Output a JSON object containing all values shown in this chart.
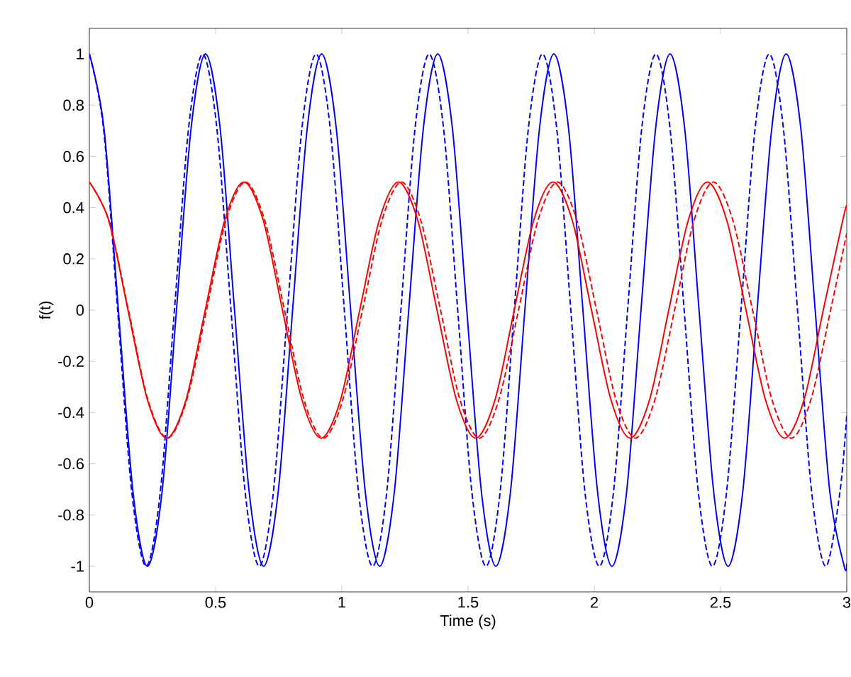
{
  "chart_data": {
    "type": "line",
    "xlabel": "Time (s)",
    "ylabel": "f(t)",
    "xlim": [
      0,
      3
    ],
    "ylim": [
      -1.1,
      1.1
    ],
    "xticks": [
      0,
      0.5,
      1,
      1.5,
      2,
      2.5,
      3
    ],
    "yticks": [
      -1,
      -0.8,
      -0.6,
      -0.4,
      -0.2,
      0,
      0.2,
      0.4,
      0.6,
      0.8,
      1
    ],
    "grid": false,
    "marker": "none",
    "series": [
      {
        "color": "#0000ff",
        "line_style": "solid",
        "x": [
          0,
          0.058,
          0.115,
          0.173,
          0.23,
          0.288,
          0.345,
          0.403,
          0.46,
          0.518,
          0.575,
          0.633,
          0.69,
          0.748,
          0.805,
          0.863,
          0.92,
          0.978,
          1.035,
          1.093,
          1.15,
          1.208,
          1.265,
          1.323,
          1.38,
          1.438,
          1.495,
          1.553,
          1.61,
          1.668,
          1.725,
          1.783,
          1.84,
          1.898,
          1.955,
          2.013,
          2.07,
          2.128,
          2.185,
          2.243,
          2.3,
          2.358,
          2.415,
          2.473,
          2.53,
          2.588,
          2.645,
          2.703,
          2.76,
          2.818,
          2.875,
          2.933,
          2.99,
          3
        ],
        "values": [
          1,
          0.71,
          0,
          -0.71,
          -1,
          -0.71,
          0,
          0.71,
          1,
          0.71,
          0,
          -0.71,
          -1,
          -0.71,
          0,
          0.71,
          1,
          0.71,
          0,
          -0.71,
          -1,
          -0.71,
          0,
          0.71,
          1,
          0.71,
          0,
          -0.71,
          -1,
          -0.71,
          0,
          0.71,
          1,
          0.71,
          0,
          -0.71,
          -1,
          -0.71,
          0,
          0.71,
          1,
          0.71,
          0,
          -0.71,
          -1,
          -0.71,
          0,
          0.71,
          1,
          0.71,
          0,
          -0.71,
          -1,
          -0.99
        ]
      },
      {
        "color": "#0000ff",
        "line_style": "dashed",
        "x": [
          0,
          0.056,
          0.112,
          0.168,
          0.225,
          0.281,
          0.337,
          0.393,
          0.449,
          0.505,
          0.561,
          0.617,
          0.673,
          0.729,
          0.785,
          0.842,
          0.898,
          0.954,
          1.01,
          1.066,
          1.122,
          1.178,
          1.234,
          1.29,
          1.346,
          1.403,
          1.459,
          1.515,
          1.571,
          1.627,
          1.683,
          1.739,
          1.795,
          1.851,
          1.907,
          1.963,
          2.02,
          2.076,
          2.132,
          2.188,
          2.244,
          2.3,
          2.356,
          2.412,
          2.468,
          2.524,
          2.581,
          2.637,
          2.693,
          2.749,
          2.805,
          2.861,
          2.917,
          2.973,
          3
        ],
        "values": [
          1,
          0.71,
          0,
          -0.71,
          -1,
          -0.71,
          0,
          0.71,
          1,
          0.71,
          0,
          -0.71,
          -1,
          -0.71,
          0,
          0.71,
          1,
          0.71,
          0,
          -0.71,
          -1,
          -0.71,
          0,
          0.71,
          1,
          0.71,
          0,
          -0.71,
          -1,
          -0.71,
          0,
          0.71,
          1,
          0.71,
          0,
          -0.71,
          -1,
          -0.71,
          0,
          0.71,
          1,
          0.71,
          0,
          -0.71,
          -1,
          -0.71,
          0,
          0.71,
          1,
          0.71,
          0,
          -0.71,
          -1,
          -0.71,
          -0.41
        ]
      },
      {
        "color": "#ff0000",
        "line_style": "solid",
        "x": [
          0,
          0.077,
          0.153,
          0.23,
          0.306,
          0.383,
          0.459,
          0.536,
          0.612,
          0.689,
          0.765,
          0.842,
          0.918,
          0.995,
          1.071,
          1.148,
          1.224,
          1.301,
          1.377,
          1.454,
          1.53,
          1.607,
          1.683,
          1.76,
          1.836,
          1.913,
          1.989,
          2.066,
          2.142,
          2.219,
          2.295,
          2.372,
          2.448,
          2.525,
          2.601,
          2.678,
          2.754,
          2.831,
          2.907,
          2.984,
          3
        ],
        "values": [
          0.5,
          0.35,
          0,
          -0.35,
          -0.5,
          -0.35,
          0,
          0.35,
          0.5,
          0.35,
          0,
          -0.35,
          -0.5,
          -0.35,
          0,
          0.35,
          0.5,
          0.35,
          0,
          -0.35,
          -0.5,
          -0.35,
          0,
          0.35,
          0.5,
          0.35,
          0,
          -0.35,
          -0.5,
          -0.35,
          0,
          0.35,
          0.5,
          0.35,
          0,
          -0.35,
          -0.5,
          -0.35,
          0,
          0.35,
          0.41
        ]
      },
      {
        "color": "#ff0000",
        "line_style": "dashed",
        "x": [
          0,
          0.077,
          0.155,
          0.232,
          0.309,
          0.386,
          0.464,
          0.541,
          0.618,
          0.695,
          0.773,
          0.85,
          0.927,
          1.004,
          1.082,
          1.159,
          1.236,
          1.313,
          1.391,
          1.468,
          1.545,
          1.622,
          1.7,
          1.777,
          1.854,
          1.931,
          2.009,
          2.086,
          2.163,
          2.24,
          2.318,
          2.395,
          2.472,
          2.549,
          2.627,
          2.704,
          2.781,
          2.858,
          2.936,
          3
        ],
        "values": [
          0.5,
          0.35,
          0,
          -0.35,
          -0.5,
          -0.35,
          0,
          0.35,
          0.5,
          0.35,
          0,
          -0.35,
          -0.5,
          -0.35,
          0,
          0.35,
          0.5,
          0.35,
          0,
          -0.35,
          -0.5,
          -0.35,
          0,
          0.35,
          0.5,
          0.35,
          0,
          -0.35,
          -0.5,
          -0.35,
          0,
          0.35,
          0.5,
          0.35,
          0,
          -0.35,
          -0.5,
          -0.35,
          0,
          0.3
        ]
      }
    ]
  }
}
